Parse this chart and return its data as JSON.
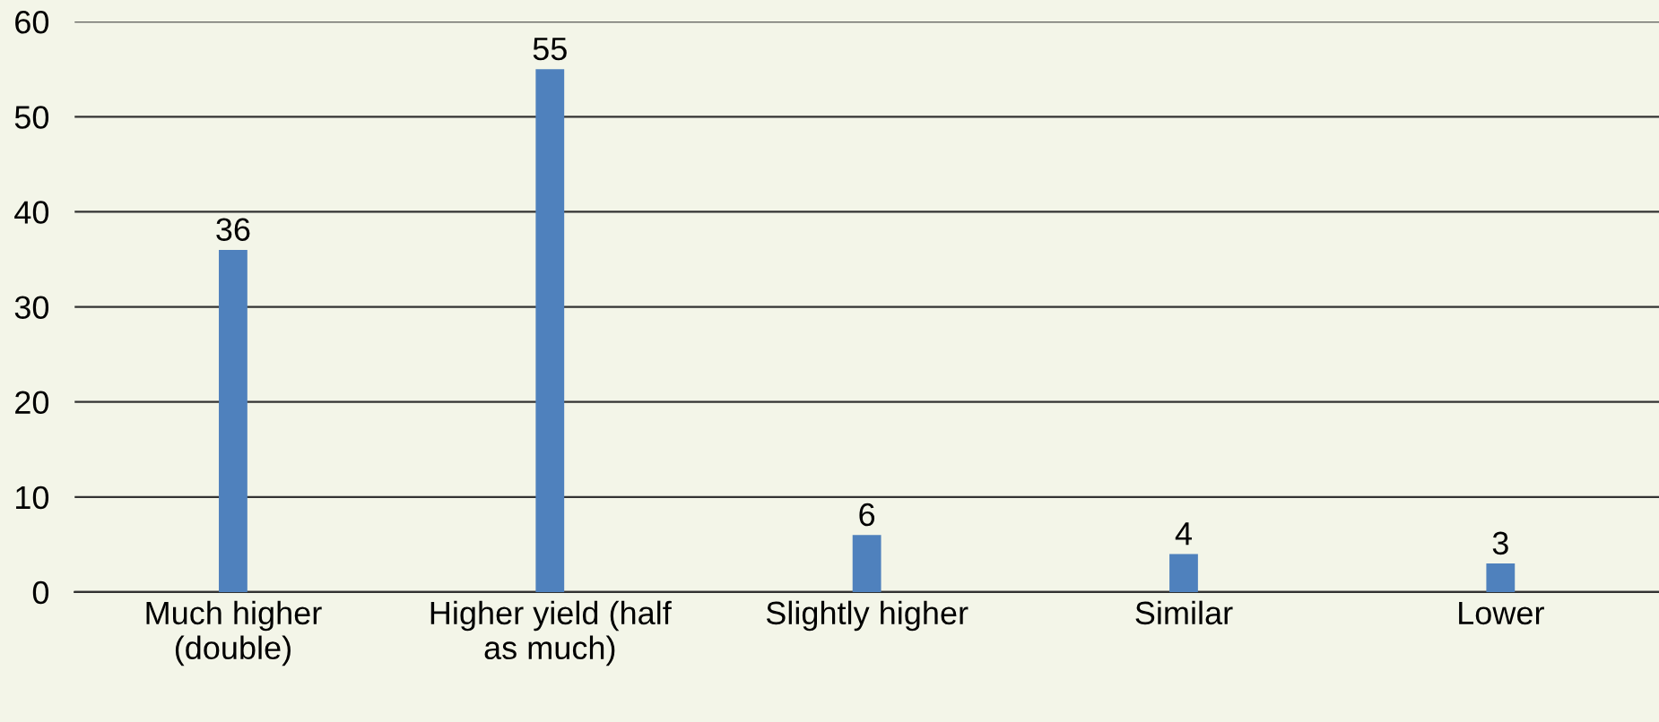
{
  "chart_data": {
    "type": "bar",
    "categories": [
      "Much higher\n(double)",
      "Higher yield (half\nas much)",
      "Slightly higher",
      "Similar",
      "Lower"
    ],
    "values": [
      36,
      55,
      6,
      4,
      3
    ],
    "color": "#4f81bd",
    "ylim": [
      0,
      60
    ],
    "yticks": [
      0,
      10,
      20,
      30,
      40,
      50,
      60
    ],
    "grid": "y",
    "data_labels": true
  }
}
